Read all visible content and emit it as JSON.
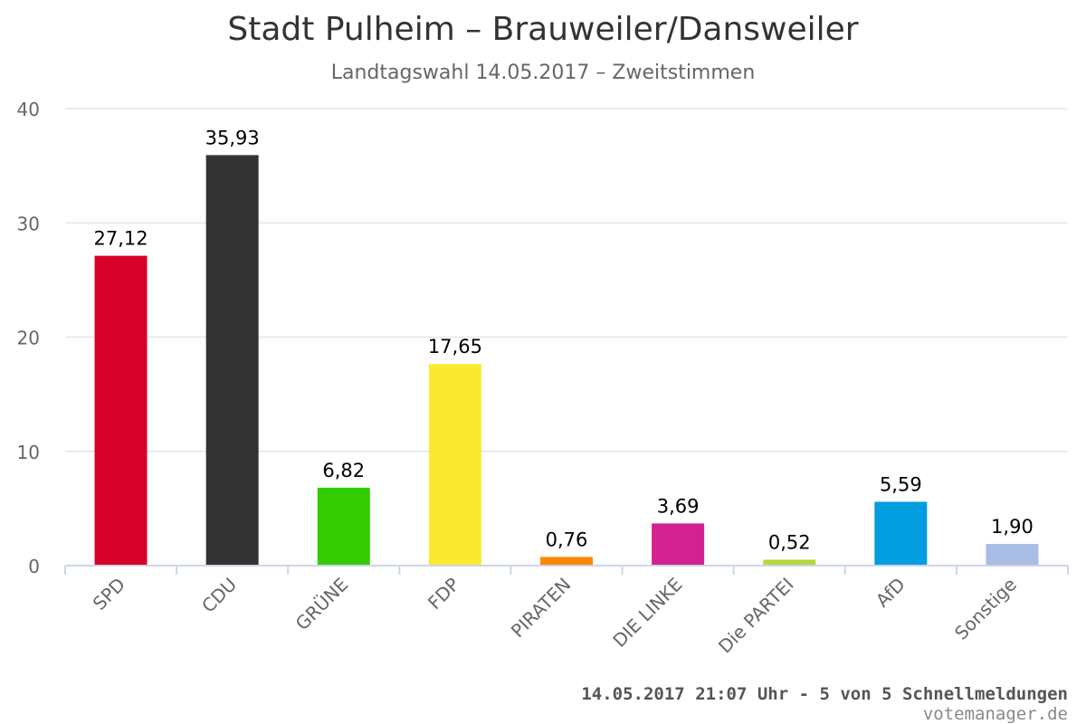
{
  "chart_data": {
    "type": "bar",
    "title": "Stadt Pulheim – Brauweiler/Dansweiler",
    "subtitle": "Landtagswahl 14.05.2017 – Zweitstimmen",
    "categories": [
      "SPD",
      "CDU",
      "GRÜNE",
      "FDP",
      "PIRATEN",
      "DIE LINKE",
      "Die PARTEI",
      "AfD",
      "Sonstige"
    ],
    "values": [
      27.12,
      35.93,
      6.82,
      17.65,
      0.76,
      3.69,
      0.52,
      5.59,
      1.9
    ],
    "value_labels": [
      "27,12",
      "35,93",
      "6,82",
      "17,65",
      "0,76",
      "3,69",
      "0,52",
      "5,59",
      "1,90"
    ],
    "colors": [
      "#d7002a",
      "#333333",
      "#33cc00",
      "#f9ea31",
      "#ff8800",
      "#d3218f",
      "#b7d63a",
      "#009ee0",
      "#a9bde6"
    ],
    "ylim": [
      0,
      40
    ],
    "yticks": [
      0,
      10,
      20,
      30,
      40
    ],
    "grid": true,
    "legend": "none"
  },
  "footer": {
    "status": "14.05.2017 21:07 Uhr - 5 von 5 Schnellmeldungen",
    "credit": "votemanager.de"
  }
}
